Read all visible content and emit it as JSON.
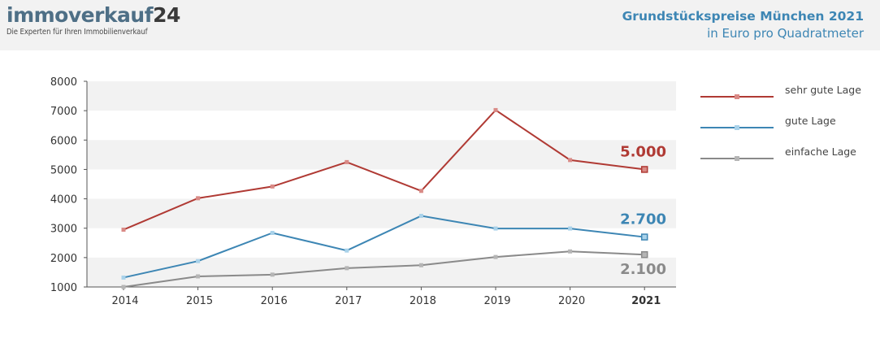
{
  "header": {
    "brand_name": "immoverkauf",
    "brand_number": "24",
    "brand_tagline": "Die Experten für Ihren Immobilienverkauf",
    "title": "Grundstückspreise München 2021",
    "subtitle": "in Euro pro Quadratmeter"
  },
  "chart_data": {
    "type": "line",
    "title": "Grundstückspreise München 2021",
    "subtitle": "in Euro pro Quadratmeter",
    "xlabel": "",
    "ylabel": "",
    "x": [
      "2014",
      "2015",
      "2016",
      "2017",
      "2018",
      "2019",
      "2020",
      "2021"
    ],
    "ylim": [
      1000,
      8000
    ],
    "yticks": [
      1000,
      2000,
      3000,
      4000,
      5000,
      6000,
      7000,
      8000
    ],
    "grid": "alternating horizontal bands",
    "legend_position": "right",
    "series": [
      {
        "name": "sehr gute Lage",
        "color": "#b03a34",
        "marker_color": "#d98a86",
        "values": [
          2950,
          4020,
          4420,
          5250,
          4270,
          7020,
          5320,
          5000
        ]
      },
      {
        "name": "gute Lage",
        "color": "#3d86b4",
        "marker_color": "#a9d2ea",
        "values": [
          1320,
          1880,
          2840,
          2240,
          3420,
          2990,
          2990,
          2700
        ]
      },
      {
        "name": "einfache Lage",
        "color": "#8a8a8a",
        "marker_color": "#b5b5b5",
        "values": [
          1000,
          1360,
          1420,
          1640,
          1740,
          2020,
          2210,
          2100
        ]
      }
    ],
    "annotations": [
      {
        "series": "sehr gute Lage",
        "x": "2021",
        "text": "5.000",
        "color": "#b03a34"
      },
      {
        "series": "gute Lage",
        "x": "2021",
        "text": "2.700",
        "color": "#3d86b4"
      },
      {
        "series": "einfache Lage",
        "x": "2021",
        "text": "2.100",
        "color": "#8a8a8a"
      }
    ]
  }
}
